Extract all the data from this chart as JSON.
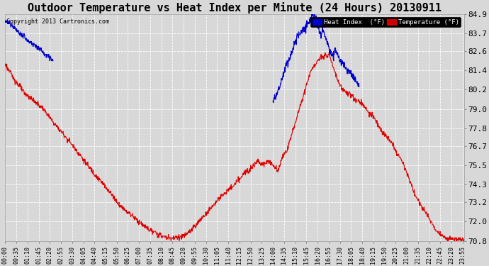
{
  "title": "Outdoor Temperature vs Heat Index per Minute (24 Hours) 20130911",
  "copyright": "Copyright 2013 Cartronics.com",
  "y_min": 70.8,
  "y_max": 84.9,
  "y_ticks": [
    70.8,
    72.0,
    73.2,
    74.3,
    75.5,
    76.7,
    77.8,
    79.0,
    80.2,
    81.4,
    82.6,
    83.7,
    84.9
  ],
  "x_tick_interval": 35,
  "total_minutes": 1440,
  "bg_color": "#d8d8d8",
  "plot_bg_color": "#d8d8d8",
  "temp_color": "#dd0000",
  "heat_color": "#0000cc",
  "grid_color": "#ffffff",
  "title_fontsize": 11,
  "figwidth": 6.9,
  "figheight": 3.75
}
